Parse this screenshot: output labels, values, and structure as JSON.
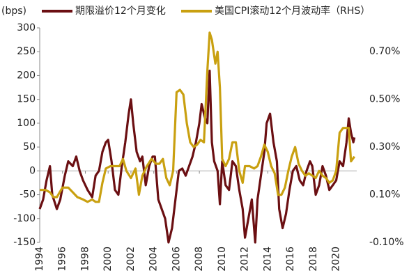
{
  "chart_data": {
    "type": "line",
    "y_label": "(bps)",
    "xlim": [
      1994,
      2021.8
    ],
    "xticks": [
      1994,
      1996,
      1998,
      2000,
      2002,
      2004,
      2006,
      2008,
      2010,
      2012,
      2014,
      2016,
      2018,
      2020
    ],
    "ylim": [
      -150,
      300
    ],
    "yticks": [
      -150,
      -100,
      -50,
      0,
      50,
      100,
      150,
      200,
      250,
      300
    ],
    "y2lim": [
      -0.1,
      0.8
    ],
    "y2ticks": [
      {
        "value": -0.1,
        "label": "-0.10%"
      },
      {
        "value": 0.1,
        "label": "0.10%"
      },
      {
        "value": 0.3,
        "label": "0.30%"
      },
      {
        "value": 0.5,
        "label": "0.50%"
      },
      {
        "value": 0.7,
        "label": "0.70%"
      }
    ],
    "series": [
      {
        "name": "期限溢价12个月变化",
        "color": "#6b0f12",
        "axis": "y",
        "x": [
          1994.0,
          1994.3,
          1994.6,
          1994.9,
          1995.1,
          1995.5,
          1995.8,
          1996.2,
          1996.5,
          1996.9,
          1997.2,
          1997.5,
          1997.8,
          1998.2,
          1998.6,
          1998.9,
          1999.2,
          1999.5,
          1999.8,
          2000.0,
          2000.3,
          2000.6,
          2000.9,
          2001.2,
          2001.5,
          2001.8,
          2002.0,
          2002.2,
          2002.5,
          2002.8,
          2003.0,
          2003.3,
          2003.6,
          2003.9,
          2004.1,
          2004.4,
          2004.7,
          2005.0,
          2005.3,
          2005.6,
          2005.9,
          2006.2,
          2006.5,
          2006.8,
          2007.1,
          2007.4,
          2007.7,
          2008.0,
          2008.2,
          2008.5,
          2008.7,
          2008.9,
          2009.1,
          2009.3,
          2009.6,
          2009.8,
          2010.0,
          2010.3,
          2010.6,
          2010.9,
          2011.2,
          2011.5,
          2011.8,
          2012.0,
          2012.3,
          2012.6,
          2012.9,
          2013.1,
          2013.4,
          2013.7,
          2013.9,
          2014.2,
          2014.5,
          2014.8,
          2015.0,
          2015.3,
          2015.6,
          2015.9,
          2016.2,
          2016.5,
          2016.8,
          2017.1,
          2017.4,
          2017.7,
          2017.9,
          2018.2,
          2018.5,
          2018.8,
          2019.1,
          2019.4,
          2019.7,
          2020.0,
          2020.3,
          2020.6,
          2020.9,
          2021.1,
          2021.3,
          2021.5,
          2021.6
        ],
        "values": [
          -80,
          -60,
          -20,
          10,
          -50,
          -80,
          -60,
          -10,
          20,
          10,
          30,
          0,
          -20,
          -40,
          -55,
          -10,
          0,
          40,
          60,
          65,
          20,
          -40,
          -50,
          10,
          60,
          120,
          150,
          100,
          40,
          20,
          30,
          -30,
          10,
          30,
          30,
          -60,
          -80,
          -100,
          -150,
          -120,
          -60,
          0,
          5,
          -10,
          10,
          30,
          60,
          100,
          140,
          110,
          100,
          210,
          60,
          20,
          0,
          -70,
          20,
          -30,
          -40,
          20,
          10,
          -40,
          -80,
          -140,
          -100,
          -60,
          -150,
          -60,
          -10,
          40,
          100,
          120,
          60,
          20,
          -80,
          -120,
          -90,
          -40,
          0,
          10,
          -20,
          -30,
          0,
          20,
          10,
          -50,
          -30,
          10,
          -10,
          -40,
          -30,
          -20,
          20,
          10,
          60,
          110,
          80,
          60,
          70
        ]
      },
      {
        "name": "美国CPI滚动12个月波动率（RHS）",
        "color": "#c9a010",
        "axis": "y2",
        "x": [
          1994.0,
          1994.5,
          1994.9,
          1995.2,
          1995.5,
          1996.0,
          1996.5,
          1996.9,
          1997.3,
          1997.8,
          1998.2,
          1998.6,
          1998.9,
          1999.2,
          1999.5,
          1999.8,
          2000.2,
          2000.6,
          2001.0,
          2001.3,
          2001.6,
          2002.0,
          2002.4,
          2002.7,
          2003.0,
          2003.4,
          2003.8,
          2004.2,
          2004.5,
          2004.8,
          2005.1,
          2005.4,
          2005.7,
          2006.0,
          2006.3,
          2006.6,
          2006.9,
          2007.2,
          2007.5,
          2007.8,
          2008.1,
          2008.4,
          2008.7,
          2008.9,
          2009.1,
          2009.4,
          2009.6,
          2009.8,
          2010.0,
          2010.3,
          2010.6,
          2010.9,
          2011.2,
          2011.5,
          2011.8,
          2012.0,
          2012.4,
          2012.8,
          2013.1,
          2013.4,
          2013.7,
          2014.0,
          2014.3,
          2014.6,
          2014.9,
          2015.2,
          2015.5,
          2015.8,
          2016.1,
          2016.4,
          2016.7,
          2017.0,
          2017.3,
          2017.6,
          2017.9,
          2018.2,
          2018.5,
          2018.8,
          2019.1,
          2019.4,
          2019.7,
          2020.0,
          2020.3,
          2020.6,
          2020.9,
          2021.1,
          2021.3,
          2021.6
        ],
        "values": [
          0.12,
          0.12,
          0.11,
          0.09,
          0.09,
          0.13,
          0.13,
          0.11,
          0.09,
          0.08,
          0.07,
          0.08,
          0.07,
          0.07,
          0.15,
          0.21,
          0.22,
          0.22,
          0.22,
          0.25,
          0.2,
          0.17,
          0.21,
          0.1,
          0.18,
          0.22,
          0.25,
          0.23,
          0.23,
          0.25,
          0.17,
          0.14,
          0.2,
          0.53,
          0.54,
          0.52,
          0.4,
          0.32,
          0.3,
          0.31,
          0.33,
          0.32,
          0.62,
          0.78,
          0.75,
          0.65,
          0.7,
          0.55,
          0.25,
          0.22,
          0.25,
          0.32,
          0.32,
          0.2,
          0.15,
          0.22,
          0.22,
          0.21,
          0.22,
          0.26,
          0.31,
          0.28,
          0.22,
          0.19,
          0.1,
          0.1,
          0.13,
          0.2,
          0.26,
          0.3,
          0.23,
          0.2,
          0.18,
          0.19,
          0.18,
          0.17,
          0.2,
          0.18,
          0.17,
          0.15,
          0.16,
          0.2,
          0.36,
          0.38,
          0.38,
          0.38,
          0.24,
          0.26
        ]
      }
    ]
  }
}
